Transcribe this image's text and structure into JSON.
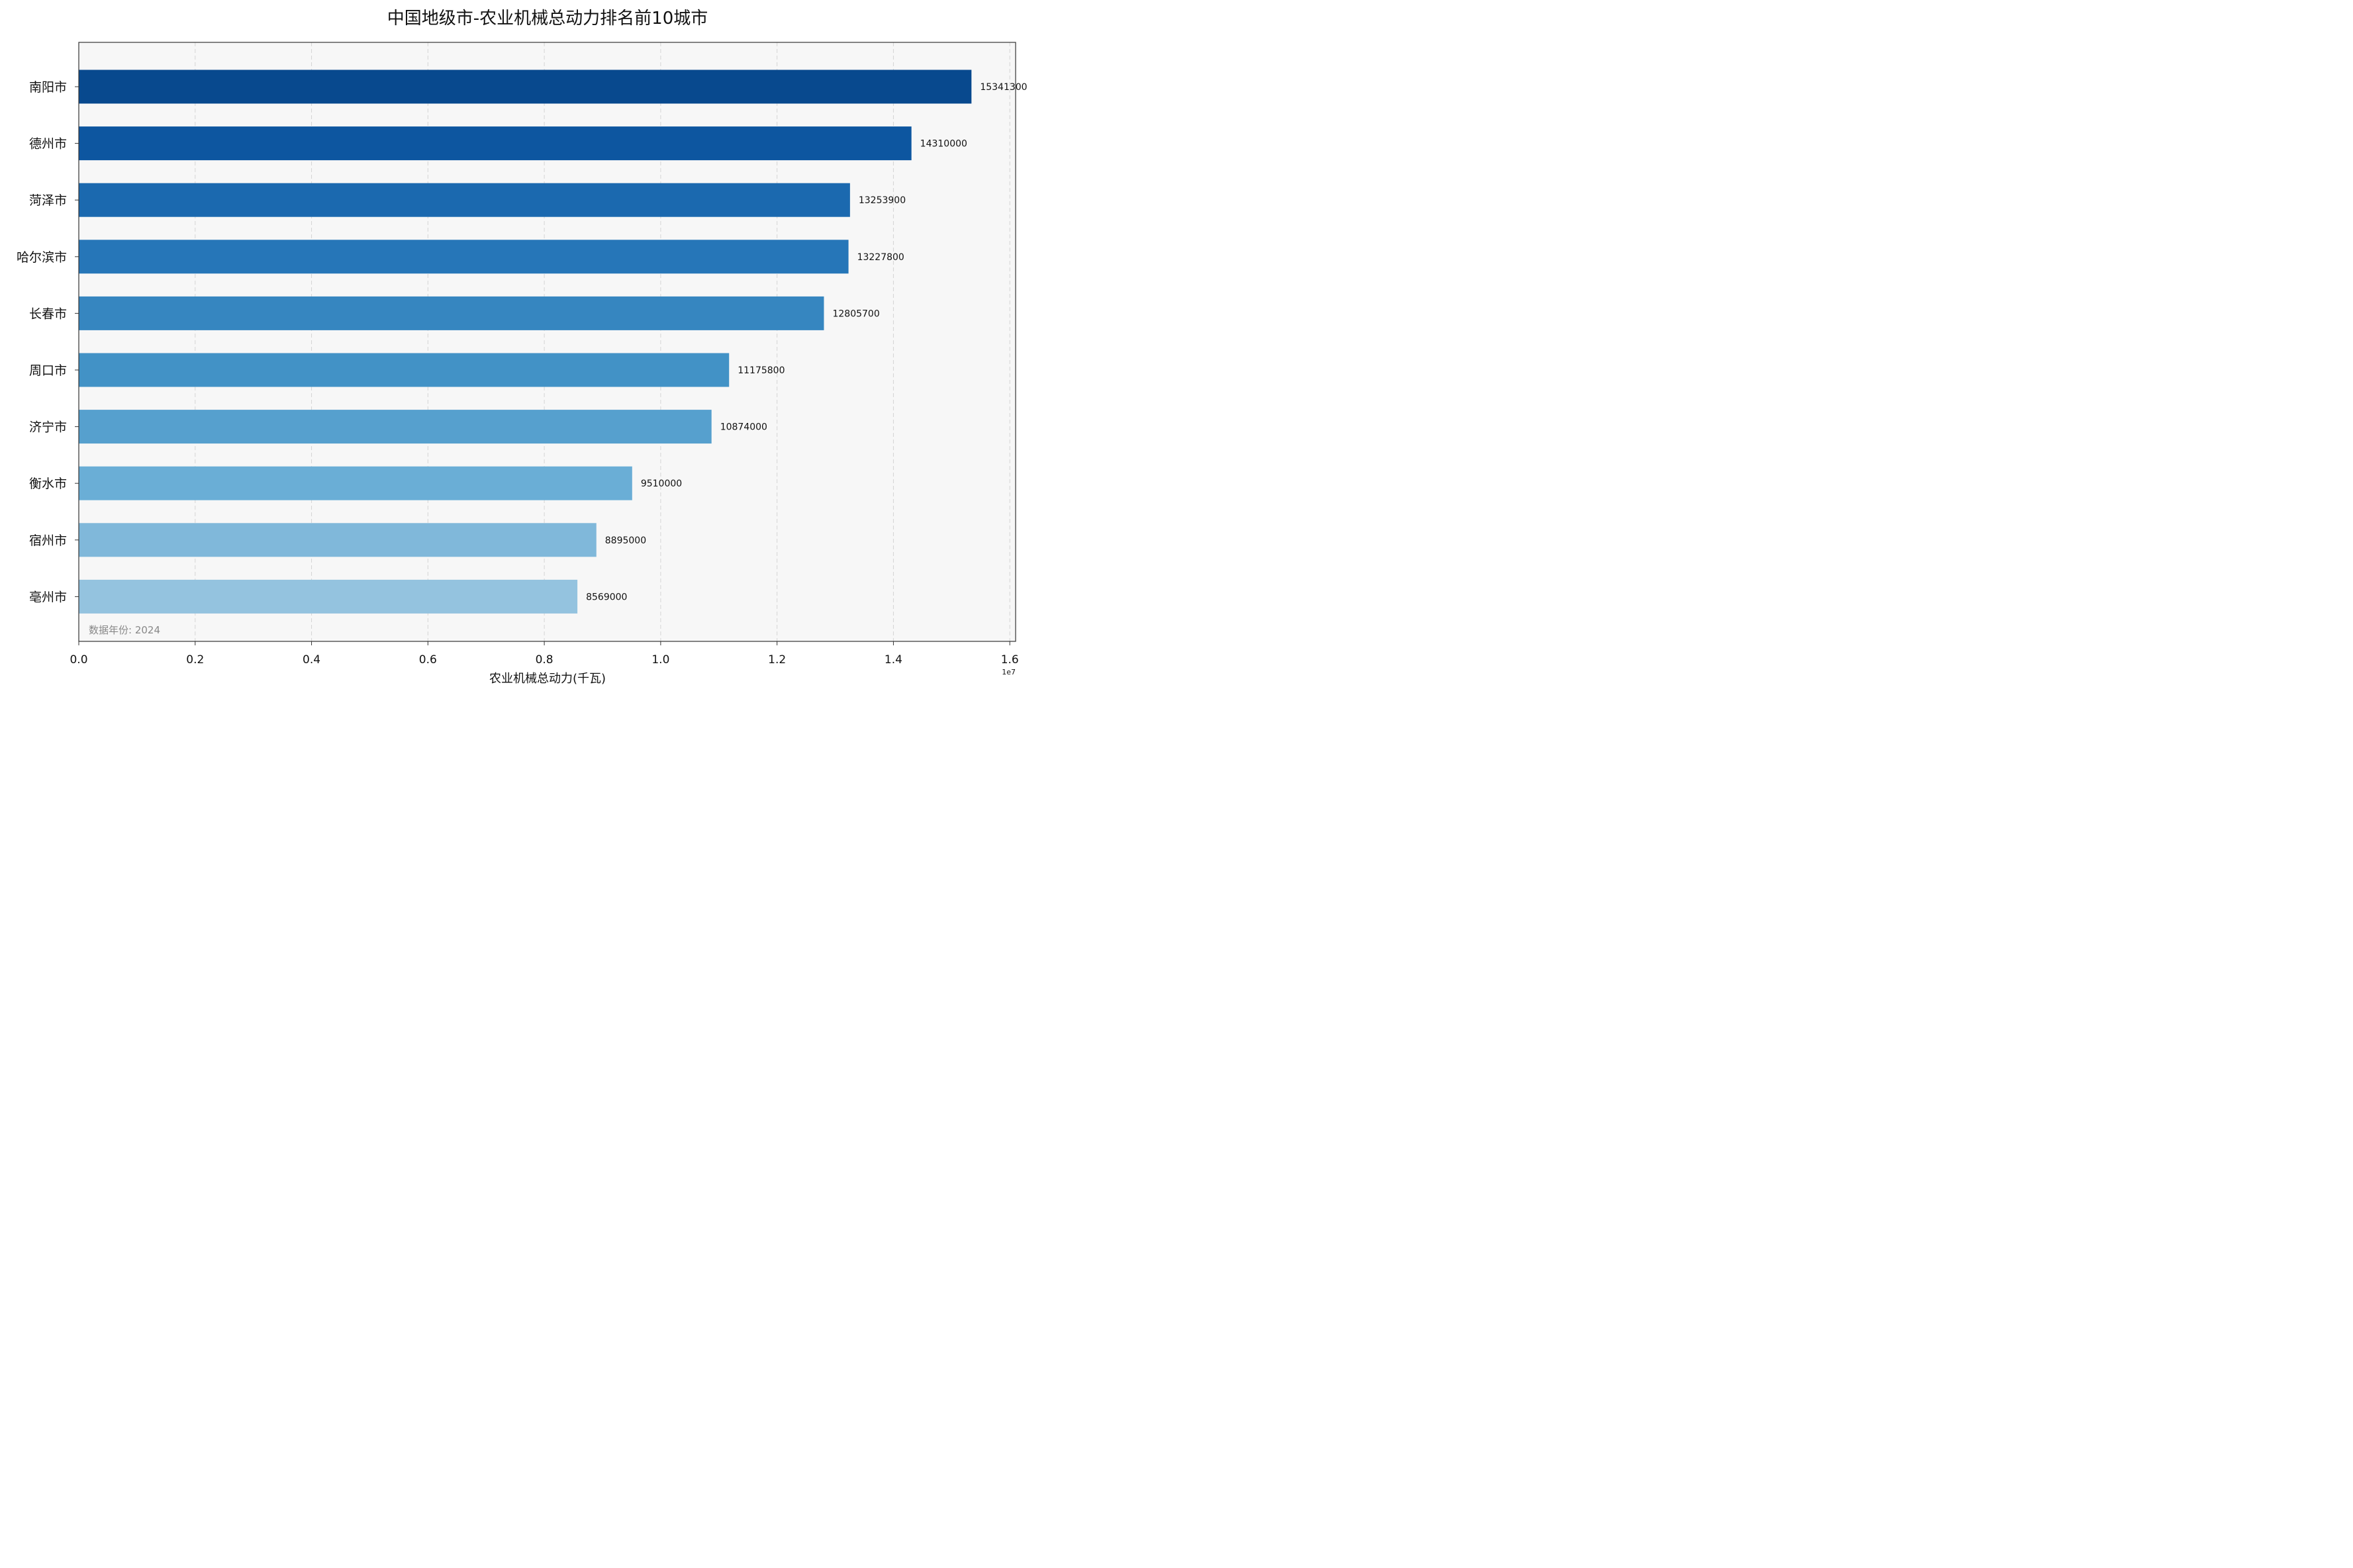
{
  "chart_data": {
    "type": "bar",
    "orientation": "horizontal",
    "title": "中国地级市-农业机械总动力排名前10城市",
    "xlabel": "农业机械总动力(千瓦)",
    "ylabel": "",
    "x_offset_text": "1e7",
    "xlim": [
      0,
      16100000
    ],
    "xticks": [
      0,
      2000000,
      4000000,
      6000000,
      8000000,
      10000000,
      12000000,
      14000000,
      16000000
    ],
    "xtick_labels": [
      "0.0",
      "0.2",
      "0.4",
      "0.6",
      "0.8",
      "1.0",
      "1.2",
      "1.4",
      "1.6"
    ],
    "grid": "x, dashed",
    "legend": "none",
    "categories": [
      "南阳市",
      "德州市",
      "菏泽市",
      "哈尔滨市",
      "长春市",
      "周口市",
      "济宁市",
      "衡水市",
      "宿州市",
      "亳州市"
    ],
    "values": [
      15341300,
      14310000,
      13253900,
      13227800,
      12805700,
      11175800,
      10874000,
      9510000,
      8895000,
      8569000
    ],
    "value_labels": [
      "15341300",
      "14310000",
      "13253900",
      "13227800",
      "12805700",
      "11175800",
      "10874000",
      "9510000",
      "8895000",
      "8569000"
    ],
    "colors": [
      "#08498e",
      "#0d56a0",
      "#1b69af",
      "#2676b8",
      "#3686c0",
      "#4292c6",
      "#56a0ce",
      "#6aaed6",
      "#80b8da",
      "#94c3df"
    ],
    "annotation": "数据年份: 2024",
    "plot_background": "#f7f7f7"
  }
}
